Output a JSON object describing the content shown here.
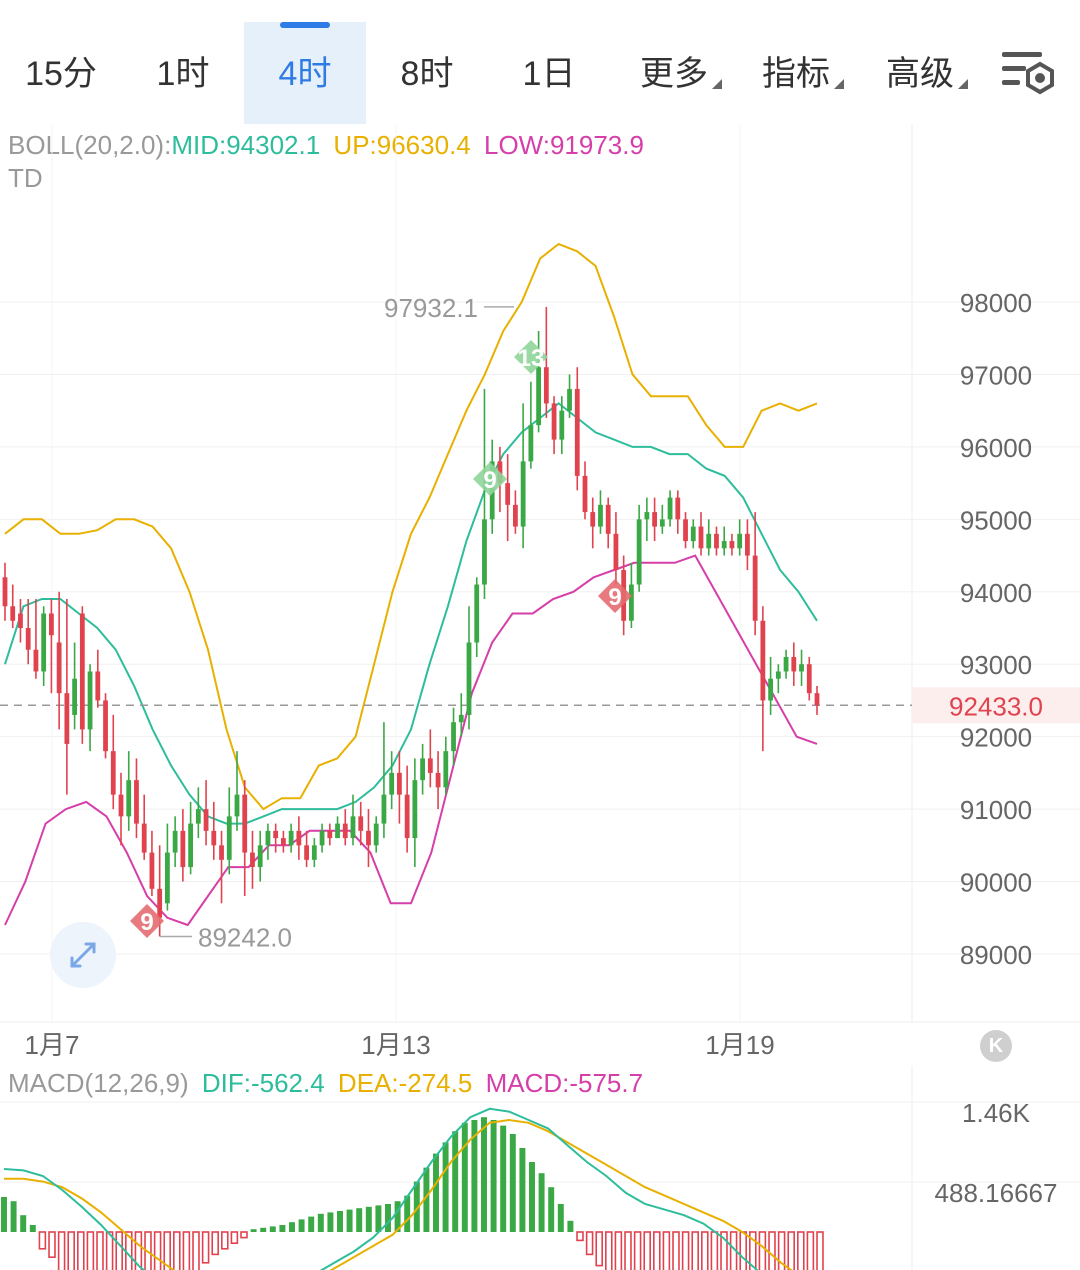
{
  "tabs": [
    {
      "label": "15分",
      "active": false
    },
    {
      "label": "1时",
      "active": false
    },
    {
      "label": "4时",
      "active": true
    },
    {
      "label": "8时",
      "active": false
    },
    {
      "label": "1日",
      "active": false
    },
    {
      "label": "更多",
      "active": false,
      "dropdown": true
    },
    {
      "label": "指标",
      "active": false,
      "dropdown": true
    },
    {
      "label": "高级",
      "active": false,
      "dropdown": true
    }
  ],
  "settings_icon": "chart-settings-icon",
  "boll_legend": {
    "name": "BOLL(20,2.0):",
    "mid": "MID:94302.1",
    "up": "UP:96630.4",
    "low": "LOW:91973.9"
  },
  "td_label": "TD",
  "macd_legend": {
    "name": "MACD(12,26,9)",
    "dif": "DIF:-562.4",
    "dea": "DEA:-274.5",
    "macd": "MACD:-575.7"
  },
  "colors": {
    "mid": "#2ebd9c",
    "up": "#e8b000",
    "low": "#d63ea9",
    "rise": "#3aa845",
    "fall": "#e0424e",
    "price_tag": "#e0424e",
    "grey": "#999999",
    "accent": "#2f7be5"
  },
  "chart_data": [
    {
      "type": "candlestick",
      "indicator": "BOLL(20,2.0) + TD",
      "ylim": [
        88500,
        99000
      ],
      "y_ticks": [
        "89000",
        "90000",
        "91000",
        "92000",
        "93000",
        "94000",
        "95000",
        "96000",
        "97000",
        "98000"
      ],
      "x_ticks": [
        "1月7",
        "1月13",
        "1月19"
      ],
      "current_price": "92433.0",
      "max_label": "97932.1",
      "min_label": "89242.0",
      "td_markers": [
        {
          "label": "9",
          "kind": "sell",
          "candle": 54
        },
        {
          "label": "13",
          "kind": "sell",
          "candle": 58
        },
        {
          "label": "9",
          "kind": "buy",
          "candle": 20
        },
        {
          "label": "9",
          "kind": "buy",
          "candle": 77
        }
      ],
      "candles": [
        [
          94200,
          93800,
          94400,
          93600
        ],
        [
          93800,
          93600,
          94100,
          93500
        ],
        [
          93700,
          93500,
          93900,
          93300
        ],
        [
          93500,
          93200,
          93900,
          93000
        ],
        [
          93200,
          92900,
          93900,
          92800
        ],
        [
          92900,
          93700,
          93800,
          92700
        ],
        [
          93700,
          93400,
          93900,
          92600
        ],
        [
          93300,
          92600,
          94000,
          92100
        ],
        [
          92600,
          91900,
          93900,
          91200
        ],
        [
          92300,
          92800,
          93300,
          92100
        ],
        [
          93700,
          92100,
          93800,
          91900
        ],
        [
          92100,
          92900,
          93000,
          91800
        ],
        [
          92900,
          92500,
          93200,
          92400
        ],
        [
          92500,
          91800,
          92600,
          91700
        ],
        [
          91800,
          91200,
          92300,
          91000
        ],
        [
          91200,
          90900,
          91500,
          90500
        ],
        [
          90900,
          91400,
          91800,
          90700
        ],
        [
          91400,
          90800,
          91700,
          90600
        ],
        [
          90800,
          90400,
          91200,
          90300
        ],
        [
          90400,
          89900,
          90700,
          89800
        ],
        [
          89900,
          89500,
          90500,
          89242
        ],
        [
          89700,
          90400,
          90800,
          89600
        ],
        [
          90400,
          90700,
          90900,
          90200
        ],
        [
          90700,
          90200,
          91000,
          90000
        ],
        [
          90200,
          90800,
          91100,
          90100
        ],
        [
          90800,
          91000,
          91300,
          90600
        ],
        [
          91000,
          90700,
          91400,
          90500
        ],
        [
          90700,
          90500,
          91100,
          90300
        ],
        [
          90500,
          90300,
          90700,
          89700
        ],
        [
          90300,
          90900,
          91300,
          90100
        ],
        [
          90900,
          91200,
          91800,
          90700
        ],
        [
          91200,
          90400,
          91400,
          89800
        ],
        [
          90400,
          90200,
          90700,
          89900
        ],
        [
          90200,
          90500,
          90700,
          90000
        ],
        [
          90500,
          90700,
          90800,
          90300
        ],
        [
          90700,
          90600,
          90800,
          90400
        ],
        [
          90600,
          90500,
          90700,
          90400
        ],
        [
          90500,
          90700,
          90800,
          90400
        ],
        [
          90700,
          90500,
          90900,
          90300
        ],
        [
          90500,
          90300,
          90700,
          90200
        ],
        [
          90300,
          90500,
          90600,
          90200
        ],
        [
          90500,
          90700,
          90800,
          90400
        ],
        [
          90700,
          90600,
          90800,
          90500
        ],
        [
          90600,
          90800,
          90900,
          90600
        ],
        [
          90800,
          90600,
          91000,
          90500
        ],
        [
          90600,
          90900,
          91200,
          90500
        ],
        [
          90900,
          90700,
          91100,
          90500
        ],
        [
          90700,
          90500,
          91000,
          90200
        ],
        [
          90500,
          90800,
          90900,
          90400
        ],
        [
          90800,
          91200,
          92200,
          90600
        ],
        [
          91200,
          91500,
          91800,
          91000
        ],
        [
          91500,
          91200,
          91800,
          90800
        ],
        [
          91200,
          90600,
          91600,
          90400
        ],
        [
          90600,
          91400,
          91700,
          90200
        ],
        [
          91400,
          91700,
          91900,
          91200
        ],
        [
          91700,
          91500,
          92100,
          91300
        ],
        [
          91500,
          91300,
          91800,
          91000
        ],
        [
          91300,
          91800,
          92000,
          91200
        ],
        [
          91800,
          92200,
          92400,
          91600
        ],
        [
          92200,
          92300,
          92600,
          92000
        ],
        [
          92300,
          93300,
          93800,
          92100
        ],
        [
          93300,
          94100,
          94200,
          93100
        ],
        [
          94100,
          95000,
          96800,
          93900
        ],
        [
          95000,
          95800,
          96100,
          94800
        ],
        [
          95800,
          95500,
          96000,
          95100
        ],
        [
          95500,
          95200,
          95900,
          94700
        ],
        [
          95200,
          94900,
          95400,
          94800
        ],
        [
          94900,
          95800,
          96600,
          94600
        ],
        [
          95800,
          96300,
          96900,
          95700
        ],
        [
          96300,
          97100,
          97600,
          96200
        ],
        [
          97100,
          96600,
          97932,
          96400
        ],
        [
          96600,
          96100,
          96700,
          95900
        ],
        [
          96100,
          96500,
          96700,
          95900
        ],
        [
          96500,
          96800,
          97000,
          96400
        ],
        [
          96800,
          95600,
          97100,
          95400
        ],
        [
          95600,
          95100,
          95800,
          95000
        ],
        [
          95100,
          94900,
          95300,
          94600
        ],
        [
          94900,
          95200,
          95400,
          94800
        ],
        [
          95200,
          94800,
          95300,
          94600
        ],
        [
          94800,
          94300,
          95100,
          94100
        ],
        [
          94300,
          93600,
          94500,
          93400
        ],
        [
          93600,
          94100,
          94400,
          93500
        ],
        [
          94100,
          95000,
          95200,
          94000
        ],
        [
          95000,
          95100,
          95300,
          94700
        ],
        [
          95100,
          94900,
          95300,
          94700
        ],
        [
          94900,
          95000,
          95200,
          94800
        ],
        [
          95000,
          95300,
          95400,
          94900
        ],
        [
          95300,
          95000,
          95400,
          94800
        ],
        [
          95000,
          94700,
          95100,
          94600
        ],
        [
          94700,
          94900,
          95000,
          94600
        ],
        [
          94900,
          94600,
          95100,
          94500
        ],
        [
          94600,
          94800,
          95000,
          94500
        ],
        [
          94800,
          94600,
          94900,
          94500
        ],
        [
          94600,
          94700,
          94900,
          94500
        ],
        [
          94700,
          94600,
          94800,
          94500
        ],
        [
          94600,
          94800,
          95000,
          94500
        ],
        [
          94800,
          94500,
          95000,
          94300
        ],
        [
          94500,
          93600,
          95100,
          93400
        ],
        [
          93600,
          92500,
          93800,
          91800
        ],
        [
          92500,
          92800,
          93100,
          92300
        ],
        [
          92800,
          92900,
          93000,
          92600
        ],
        [
          92900,
          93100,
          93200,
          92800
        ],
        [
          93100,
          92900,
          93300,
          92700
        ],
        [
          92900,
          93000,
          93200,
          92700
        ],
        [
          93000,
          92600,
          93100,
          92500
        ],
        [
          92600,
          92433,
          92700,
          92300
        ]
      ],
      "boll_up": [
        94800,
        95000,
        95000,
        94800,
        94800,
        94850,
        95000,
        95000,
        94900,
        94600,
        94000,
        93200,
        92100,
        91300,
        91000,
        91150,
        91150,
        91600,
        91700,
        92000,
        93000,
        94000,
        94800,
        95300,
        95900,
        96500,
        97000,
        97600,
        98000,
        98600,
        98800,
        98700,
        98500,
        97800,
        97000,
        96700,
        96700,
        96700,
        96300,
        96000,
        96000,
        96500,
        96600,
        96500,
        96600
      ],
      "boll_mid": [
        93000,
        93800,
        93900,
        93900,
        93700,
        93500,
        93200,
        92700,
        92100,
        91600,
        91200,
        90900,
        90800,
        90800,
        90900,
        91000,
        91000,
        91000,
        91000,
        91100,
        91300,
        91600,
        92100,
        93000,
        93800,
        94700,
        95400,
        95900,
        96200,
        96400,
        96600,
        96400,
        96200,
        96100,
        96000,
        96000,
        95900,
        95900,
        95700,
        95600,
        95300,
        94800,
        94300,
        94000,
        93600
      ],
      "boll_low": [
        89400,
        90000,
        90800,
        91000,
        91100,
        90900,
        90400,
        89800,
        89500,
        89400,
        89800,
        90200,
        90200,
        90500,
        90500,
        90700,
        90700,
        90700,
        90400,
        89700,
        89700,
        90400,
        91500,
        92600,
        93300,
        93700,
        93700,
        93900,
        94000,
        94200,
        94300,
        94400,
        94400,
        94400,
        94500,
        94000,
        93500,
        93000,
        92500,
        92000,
        91900
      ],
      "macd_ticks": [
        "1.46K",
        "488.16667"
      ],
      "macd_bars": [
        0.25,
        0.22,
        0.12,
        0.05,
        -0.12,
        -0.18,
        -0.28,
        -0.32,
        -0.36,
        -0.38,
        -0.42,
        -0.44,
        -0.45,
        -0.45,
        -0.44,
        -0.42,
        -0.4,
        -0.38,
        -0.36,
        -0.32,
        -0.28,
        -0.22,
        -0.16,
        -0.12,
        -0.08,
        -0.04,
        0.02,
        0.03,
        0.04,
        0.05,
        0.07,
        0.09,
        0.11,
        0.13,
        0.14,
        0.15,
        0.16,
        0.17,
        0.18,
        0.19,
        0.2,
        0.22,
        0.26,
        0.36,
        0.46,
        0.56,
        0.64,
        0.72,
        0.78,
        0.8,
        0.82,
        0.8,
        0.76,
        0.7,
        0.6,
        0.5,
        0.42,
        0.32,
        0.2,
        0.08,
        -0.06,
        -0.16,
        -0.24,
        -0.32,
        -0.38,
        -0.4,
        -0.42,
        -0.44,
        -0.45,
        -0.44,
        -0.42,
        -0.4,
        -0.38,
        -0.36,
        -0.32,
        -0.3,
        -0.28,
        -0.34,
        -0.4,
        -0.46,
        -0.5,
        -0.52,
        -0.55,
        -0.57,
        -0.58,
        -0.6
      ],
      "macd_dif": [
        0.45,
        0.44,
        0.4,
        0.3,
        0.18,
        0.05,
        -0.1,
        -0.25,
        -0.36,
        -0.44,
        -0.48,
        -0.5,
        -0.5,
        -0.48,
        -0.44,
        -0.38,
        -0.3,
        -0.22,
        -0.14,
        -0.04,
        0.1,
        0.3,
        0.5,
        0.68,
        0.82,
        0.88,
        0.86,
        0.8,
        0.74,
        0.62,
        0.5,
        0.4,
        0.28,
        0.2,
        0.16,
        0.12,
        0.06,
        -0.04,
        -0.18,
        -0.3,
        -0.44,
        -0.56,
        -0.66
      ],
      "macd_dea": [
        0.38,
        0.38,
        0.36,
        0.32,
        0.24,
        0.14,
        0.02,
        -0.1,
        -0.2,
        -0.3,
        -0.38,
        -0.42,
        -0.46,
        -0.46,
        -0.44,
        -0.4,
        -0.34,
        -0.26,
        -0.18,
        -0.1,
        -0.02,
        0.12,
        0.3,
        0.5,
        0.66,
        0.78,
        0.8,
        0.78,
        0.72,
        0.64,
        0.56,
        0.48,
        0.4,
        0.32,
        0.26,
        0.2,
        0.14,
        0.08,
        0.0,
        -0.1,
        -0.22,
        -0.32,
        -0.44
      ]
    }
  ]
}
